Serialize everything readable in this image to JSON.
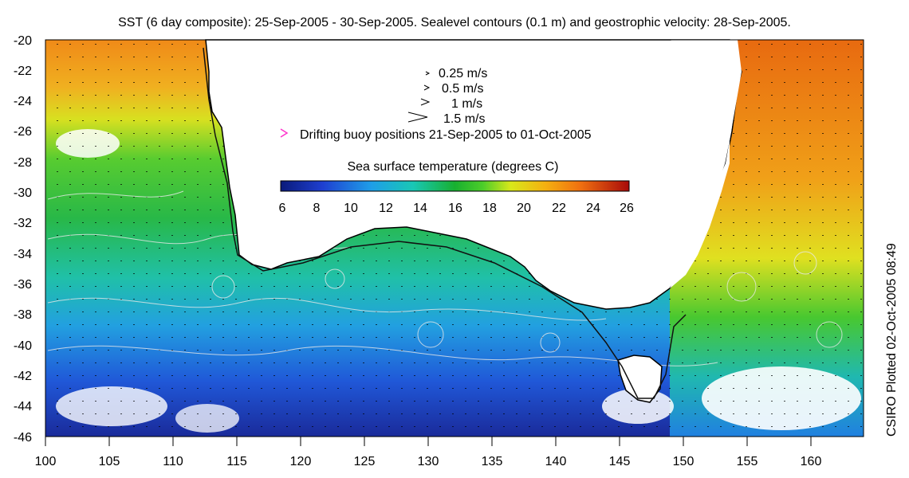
{
  "title": "SST (6 day composite): 25-Sep-2005 - 30-Sep-2005. Sealevel contours (0.1 m) and geostrophic velocity: 28-Sep-2005.",
  "side_note": "CSIRO Plotted 02-Oct-2005 08:49",
  "axes": {
    "x_ticks": [
      "100",
      "105",
      "110",
      "115",
      "120",
      "125",
      "130",
      "135",
      "140",
      "145",
      "150",
      "155",
      "160"
    ],
    "y_ticks": [
      "-20",
      "-22",
      "-24",
      "-26",
      "-28",
      "-30",
      "-32",
      "-34",
      "-36",
      "-38",
      "-40",
      "-42",
      "-44",
      "-46"
    ]
  },
  "legend": {
    "velocity_entries": [
      {
        "label": "0.25 m/s"
      },
      {
        "label": "0.5 m/s"
      },
      {
        "label": "1 m/s"
      },
      {
        "label": "1.5 m/s"
      }
    ],
    "buoy_label": "Drifting buoy positions 21-Sep-2005 to 01-Oct-2005",
    "buoy_color": "#ff33cc",
    "colorbar_title": "Sea surface temperature (degrees C)",
    "colorbar_ticks": [
      "6",
      "8",
      "10",
      "12",
      "14",
      "16",
      "18",
      "20",
      "22",
      "24",
      "26"
    ]
  },
  "colors": {
    "land": "#ffffff",
    "coast": "#000000",
    "contour": "#e8e8e8"
  }
}
